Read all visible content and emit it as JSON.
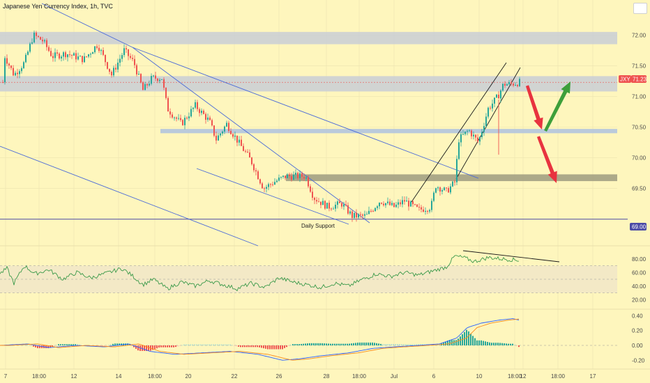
{
  "title": "Japanese Yen Currency Index, 1h, TVC",
  "chart_data": {
    "type": "candlestick",
    "symbol": "JXY",
    "last_price": "71.23",
    "support_label": "Daily Support",
    "support_value": "69.00",
    "price_ticks": [
      "72.00",
      "71.50",
      "71.00",
      "70.50",
      "70.00",
      "69.50"
    ],
    "price_range": [
      68.6,
      72.4
    ],
    "x_ticks": [
      "7",
      "18:00",
      "12",
      "14",
      "18:00",
      "20",
      "22",
      "26",
      "28",
      "18:00",
      "Jul",
      "6",
      "10",
      "18:00",
      "12",
      "18:00",
      "17"
    ],
    "zones": [
      {
        "from": 71.85,
        "to": 72.05,
        "color": "#c9ced6"
      },
      {
        "from": 71.08,
        "to": 71.33,
        "color": "#c9ced6"
      },
      {
        "from": 70.4,
        "to": 70.47,
        "color": "#aec2e0"
      },
      {
        "from": 69.62,
        "to": 69.73,
        "color": "#9e9b80"
      }
    ],
    "rsi": {
      "ticks": [
        "80.00",
        "60.00",
        "40.00",
        "20.00"
      ],
      "range": [
        10,
        90
      ],
      "band": [
        30,
        70
      ],
      "midline": 50
    },
    "macd": {
      "ticks": [
        "0.40",
        "0.20",
        "0.00",
        "-0.20"
      ],
      "range": [
        -0.3,
        0.45
      ]
    },
    "colors": {
      "up": "#26a69a",
      "down": "#ef5350",
      "grid": "#ece4b0",
      "trend": "#4a6ad8",
      "support": "#4a4aa5",
      "arrow_down": "#e8333f",
      "arrow_up": "#3d9f3a",
      "rsi": "#3b9a4a",
      "macd": "#2962ff",
      "signal": "#ff8c1a"
    }
  }
}
